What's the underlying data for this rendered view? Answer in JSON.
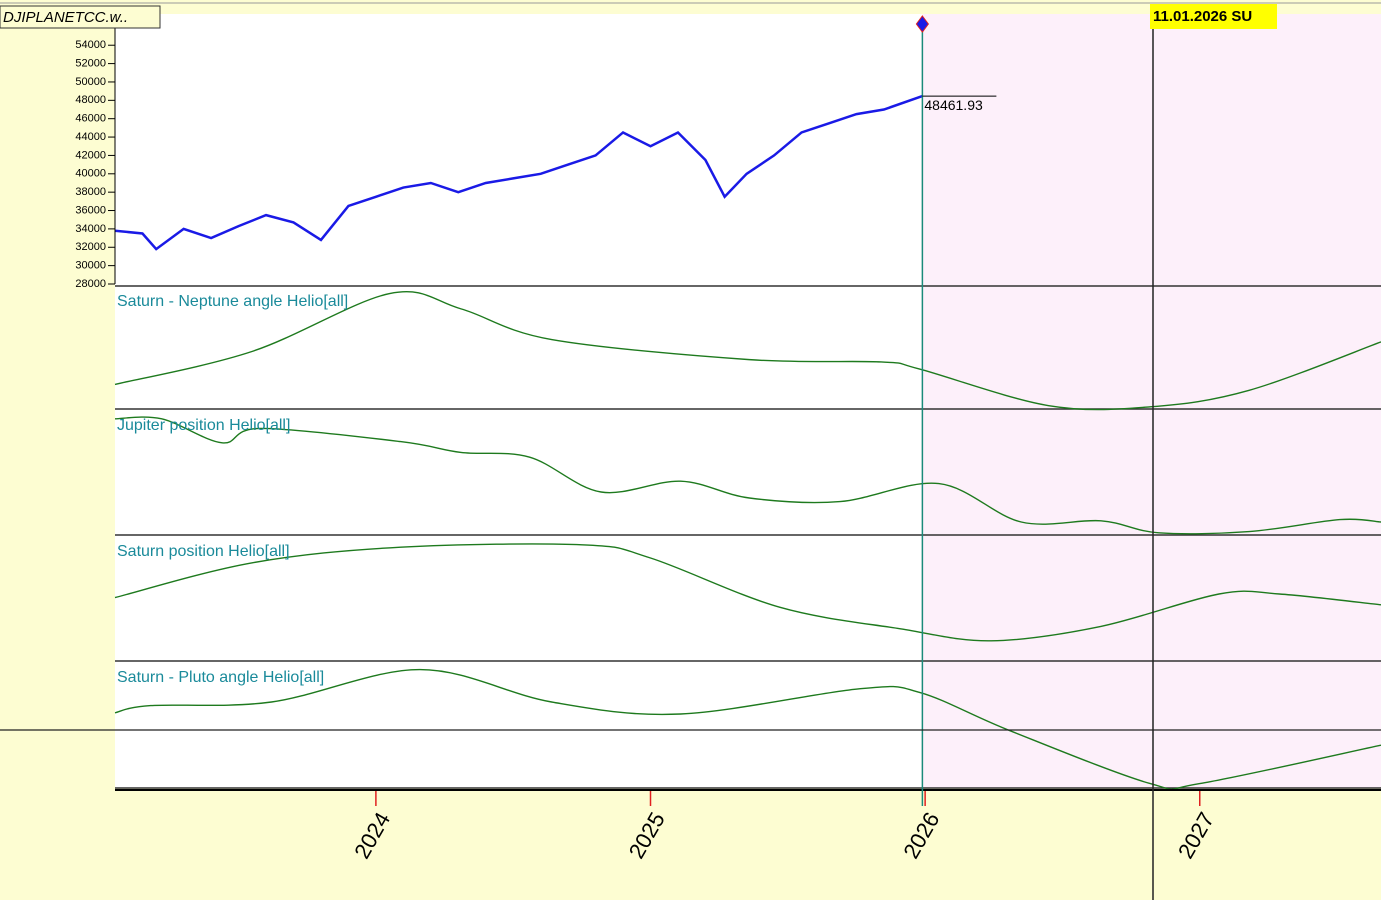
{
  "window": {
    "title": "DJIPLANETCC.w..",
    "cursor_date": "11.01.2026 SU"
  },
  "chart_data": [
    {
      "type": "line",
      "x": [
        2023.05,
        2023.15,
        2023.2,
        2023.3,
        2023.4,
        2023.5,
        2023.6,
        2023.7,
        2023.8,
        2023.9,
        2024.0,
        2024.1,
        2024.2,
        2024.3,
        2024.4,
        2024.5,
        2024.6,
        2024.7,
        2024.8,
        2024.9,
        2025.0,
        2025.1,
        2025.2,
        2025.27,
        2025.35,
        2025.45,
        2025.55,
        2025.65,
        2025.75,
        2025.85,
        2025.99
      ],
      "series": [
        {
          "color": "#1a1ae6",
          "values": [
            33800,
            33500,
            31800,
            34000,
            33000,
            34300,
            35500,
            34700,
            32800,
            36500,
            37500,
            38500,
            39000,
            38000,
            39000,
            39500,
            40000,
            41000,
            42000,
            44500,
            43000,
            44500,
            41500,
            37500,
            40000,
            42000,
            44500,
            45500,
            46500,
            47000,
            48461.93
          ]
        }
      ],
      "xlim": [
        2023.05,
        2027.66
      ],
      "ylim": [
        28000,
        57400
      ],
      "yticks": [
        28000,
        30000,
        32000,
        34000,
        36000,
        38000,
        40000,
        42000,
        44000,
        46000,
        48000,
        50000,
        52000,
        54000
      ]
    },
    {
      "type": "line",
      "title": "Saturn - Neptune angle Helio[all]",
      "x": [
        2023.05,
        2023.55,
        2024.05,
        2024.31,
        2024.64,
        2025.36,
        2025.84,
        2025.98,
        2026.45,
        2026.82,
        2027.18,
        2027.66
      ],
      "series": [
        {
          "color": "#1e7a1e",
          "values": [
            20,
            48,
            97,
            84,
            58,
            41,
            39,
            33,
            2,
            1,
            15,
            56
          ]
        }
      ],
      "xlim": [
        2023.05,
        2027.66
      ],
      "ylim": [
        0,
        100
      ]
    },
    {
      "type": "line",
      "title": "Jupiter position Helio[all]",
      "x": [
        2023.05,
        2023.22,
        2023.44,
        2023.58,
        2024.09,
        2024.31,
        2024.56,
        2024.82,
        2025.11,
        2025.36,
        2025.69,
        2026.05,
        2026.35,
        2026.64,
        2026.85,
        2027.18,
        2027.51,
        2027.66
      ],
      "series": [
        {
          "color": "#1e7a1e",
          "values": [
            96,
            96,
            76,
            88,
            77,
            68,
            64,
            35,
            44,
            30,
            27,
            42,
            10,
            11,
            1,
            2,
            12,
            10
          ]
        }
      ],
      "xlim": [
        2023.05,
        2027.66
      ],
      "ylim": [
        0,
        100
      ]
    },
    {
      "type": "line",
      "title": "Saturn position Helio[all]",
      "x": [
        2023.05,
        2023.55,
        2024.09,
        2024.75,
        2025.0,
        2025.47,
        2025.91,
        2026.24,
        2026.64,
        2027.07,
        2027.29,
        2027.66
      ],
      "series": [
        {
          "color": "#1e7a1e",
          "values": [
            52,
            81,
            94,
            96,
            85,
            44,
            26,
            16,
            28,
            55,
            55,
            46
          ]
        }
      ],
      "xlim": [
        2023.05,
        2027.66
      ],
      "ylim": [
        0,
        100
      ]
    },
    {
      "type": "line",
      "title": "Saturn - Pluto angle Helio[all]",
      "x": [
        2023.05,
        2023.18,
        2023.62,
        2024.16,
        2024.64,
        2025.11,
        2025.76,
        2025.98,
        2026.31,
        2026.82,
        2027.0,
        2027.66
      ],
      "series": [
        {
          "color": "#1e7a1e",
          "values": [
            61,
            67,
            70,
            97,
            70,
            60,
            81,
            78,
            46,
            2,
            2,
            34
          ]
        }
      ],
      "xlim": [
        2023.05,
        2027.66
      ],
      "ylim": [
        0,
        100
      ],
      "xticks": [
        2024,
        2025,
        2026,
        2027
      ]
    }
  ]
}
